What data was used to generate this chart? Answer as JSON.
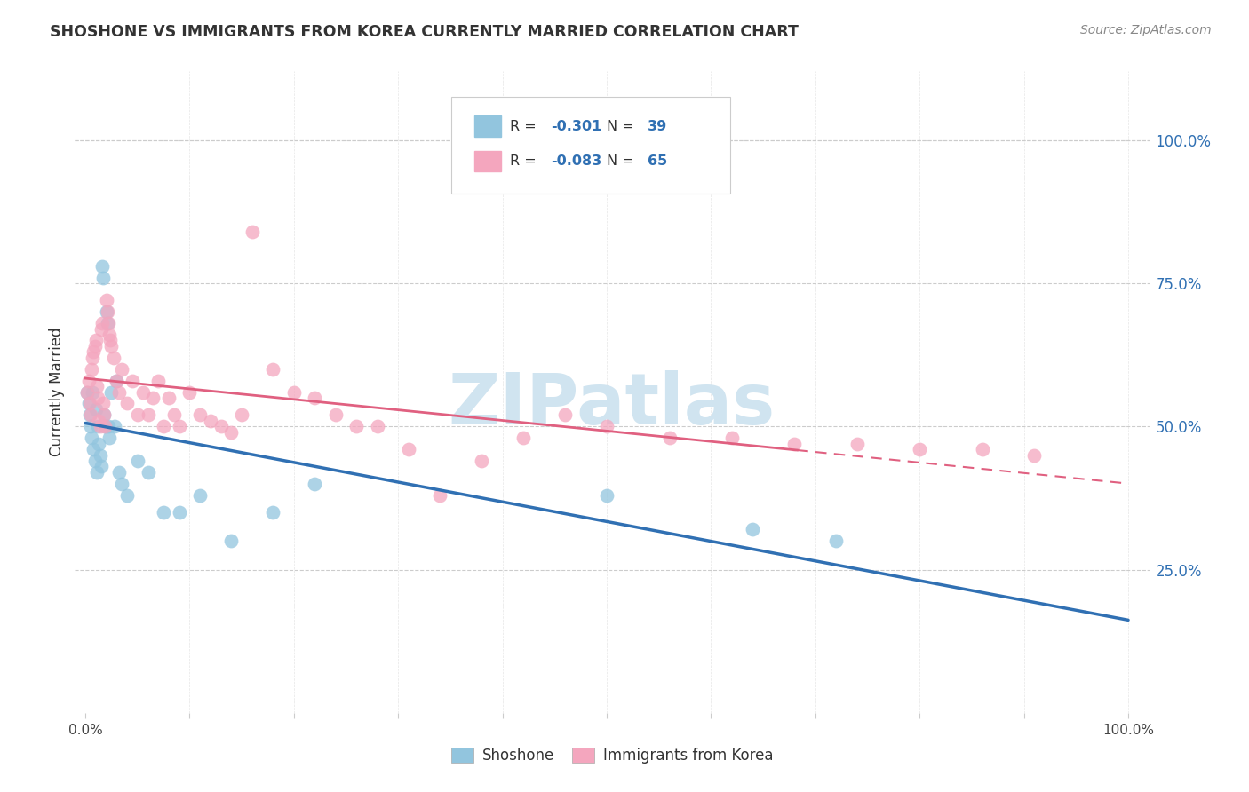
{
  "title": "SHOSHONE VS IMMIGRANTS FROM KOREA CURRENTLY MARRIED CORRELATION CHART",
  "source": "Source: ZipAtlas.com",
  "ylabel": "Currently Married",
  "ytick_labels": [
    "25.0%",
    "50.0%",
    "75.0%",
    "100.0%"
  ],
  "ytick_values": [
    0.25,
    0.5,
    0.75,
    1.0
  ],
  "legend_label1": "Shoshone",
  "legend_label2": "Immigrants from Korea",
  "R1": -0.301,
  "N1": 39,
  "R2": -0.083,
  "N2": 65,
  "color_blue": "#92C5DE",
  "color_pink": "#F4A6BE",
  "color_blue_line": "#3070B3",
  "color_pink_line": "#E06080",
  "watermark": "ZIPatlas",
  "watermark_color": "#D0E4F0",
  "grid_color": "#CCCCCC",
  "text_color": "#333333",
  "blue_label_color": "#3070B3",
  "shoshone_x": [
    0.002,
    0.003,
    0.004,
    0.005,
    0.006,
    0.007,
    0.008,
    0.009,
    0.01,
    0.011,
    0.012,
    0.013,
    0.014,
    0.015,
    0.016,
    0.017,
    0.018,
    0.019,
    0.02,
    0.021,
    0.022,
    0.023,
    0.025,
    0.028,
    0.03,
    0.032,
    0.035,
    0.04,
    0.05,
    0.06,
    0.075,
    0.09,
    0.11,
    0.14,
    0.18,
    0.22,
    0.5,
    0.64,
    0.72
  ],
  "shoshone_y": [
    0.56,
    0.54,
    0.52,
    0.5,
    0.48,
    0.56,
    0.46,
    0.44,
    0.53,
    0.42,
    0.5,
    0.47,
    0.45,
    0.43,
    0.78,
    0.76,
    0.52,
    0.5,
    0.7,
    0.68,
    0.5,
    0.48,
    0.56,
    0.5,
    0.58,
    0.42,
    0.4,
    0.38,
    0.44,
    0.42,
    0.35,
    0.35,
    0.38,
    0.3,
    0.35,
    0.4,
    0.38,
    0.32,
    0.3
  ],
  "korea_x": [
    0.002,
    0.003,
    0.004,
    0.005,
    0.006,
    0.007,
    0.008,
    0.009,
    0.01,
    0.011,
    0.012,
    0.013,
    0.014,
    0.015,
    0.016,
    0.017,
    0.018,
    0.019,
    0.02,
    0.021,
    0.022,
    0.023,
    0.024,
    0.025,
    0.027,
    0.03,
    0.032,
    0.035,
    0.04,
    0.045,
    0.05,
    0.055,
    0.06,
    0.065,
    0.07,
    0.075,
    0.08,
    0.085,
    0.09,
    0.1,
    0.11,
    0.12,
    0.13,
    0.14,
    0.15,
    0.16,
    0.18,
    0.2,
    0.22,
    0.24,
    0.26,
    0.28,
    0.31,
    0.34,
    0.38,
    0.42,
    0.46,
    0.5,
    0.56,
    0.62,
    0.68,
    0.74,
    0.8,
    0.86,
    0.91
  ],
  "korea_y": [
    0.56,
    0.58,
    0.54,
    0.52,
    0.6,
    0.62,
    0.63,
    0.64,
    0.65,
    0.57,
    0.55,
    0.51,
    0.5,
    0.67,
    0.68,
    0.54,
    0.52,
    0.5,
    0.72,
    0.7,
    0.68,
    0.66,
    0.65,
    0.64,
    0.62,
    0.58,
    0.56,
    0.6,
    0.54,
    0.58,
    0.52,
    0.56,
    0.52,
    0.55,
    0.58,
    0.5,
    0.55,
    0.52,
    0.5,
    0.56,
    0.52,
    0.51,
    0.5,
    0.49,
    0.52,
    0.84,
    0.6,
    0.56,
    0.55,
    0.52,
    0.5,
    0.5,
    0.46,
    0.38,
    0.44,
    0.48,
    0.52,
    0.5,
    0.48,
    0.48,
    0.47,
    0.47,
    0.46,
    0.46,
    0.45
  ]
}
